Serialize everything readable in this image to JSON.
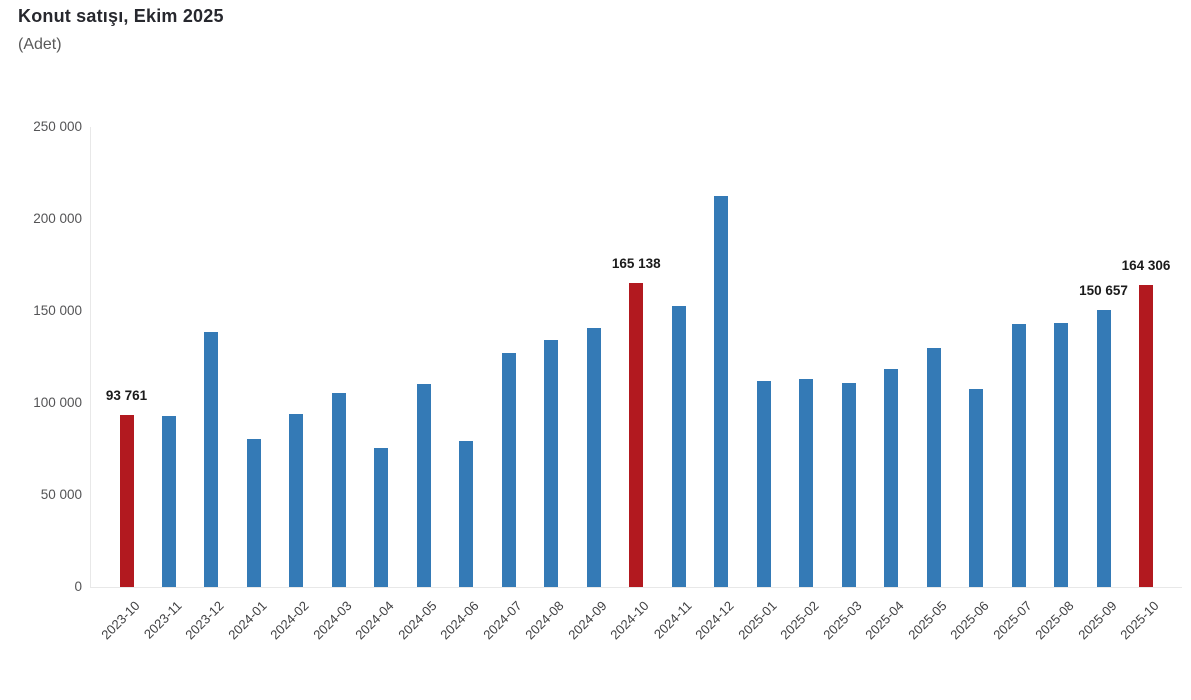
{
  "header": {
    "title": "Konut satışı, Ekim 2025",
    "subtitle": "(Adet)"
  },
  "chart_data": {
    "type": "bar",
    "title": "Konut satışı, Ekim 2025",
    "subtitle": "(Adet)",
    "xlabel": "",
    "ylabel": "",
    "ylim": [
      0,
      250000
    ],
    "ytick_interval": 50000,
    "ytick_labels": [
      "0",
      "50 000",
      "100 000",
      "150 000",
      "200 000",
      "250 000"
    ],
    "grid": false,
    "legend": false,
    "bar_color": "#347AB6",
    "highlight_color": "#B2191F",
    "highlight_indices": [
      0,
      12,
      24
    ],
    "categories": [
      "2023-10",
      "2023-11",
      "2023-12",
      "2024-01",
      "2024-02",
      "2024-03",
      "2024-04",
      "2024-05",
      "2024-06",
      "2024-07",
      "2024-08",
      "2024-09",
      "2024-10",
      "2024-11",
      "2024-12",
      "2025-01",
      "2025-02",
      "2025-03",
      "2025-04",
      "2025-05",
      "2025-06",
      "2025-07",
      "2025-08",
      "2025-09",
      "2025-10"
    ],
    "values": [
      93761,
      93227,
      138577,
      80308,
      93902,
      105476,
      75569,
      110588,
      79313,
      127088,
      134155,
      140919,
      165138,
      153014,
      212637,
      112173,
      112818,
      110795,
      118359,
      130025,
      107723,
      142858,
      143319,
      150657,
      164306
    ],
    "data_labels": {
      "0": "93 761",
      "12": "165 138",
      "23": "150 657",
      "24": "164 306"
    }
  }
}
